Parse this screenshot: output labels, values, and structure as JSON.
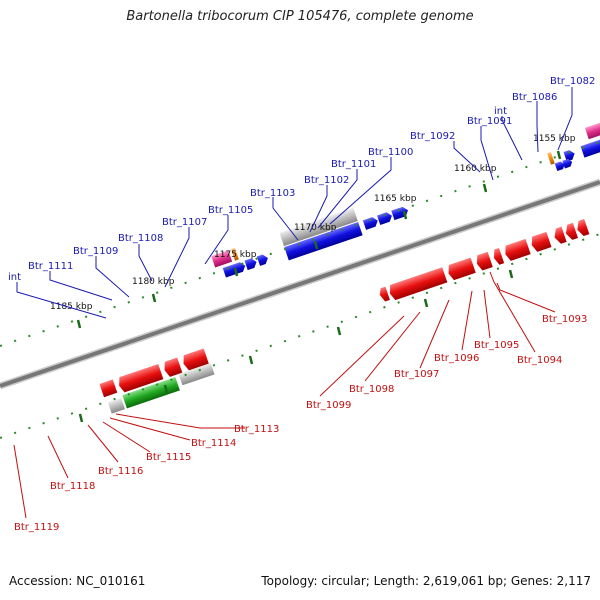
{
  "title": "Bartonella tribocorum CIP 105476, complete genome",
  "footer": {
    "accession": "Accession: NC_010161",
    "topology": "Topology: circular; Length: 2,619,061 bp; Genes: 2,117"
  },
  "scale_labels": [
    "1155 kbp",
    "1160 kbp",
    "1165 kbp",
    "1170 kbp",
    "1175 kbp",
    "1180 kbp",
    "1185 kbp"
  ],
  "forward_genes": [
    "Btr_1082",
    "Btr_1086",
    "int",
    "Btr_1091",
    "Btr_1092",
    "Btr_1100",
    "Btr_1101",
    "Btr_1102",
    "Btr_1103",
    "Btr_1105",
    "Btr_1107",
    "Btr_1108",
    "Btr_1109",
    "Btr_1111",
    "int"
  ],
  "reverse_genes": [
    "Btr_1093",
    "Btr_1094",
    "Btr_1095",
    "Btr_1096",
    "Btr_1097",
    "Btr_1098",
    "Btr_1099",
    "Btr_1113",
    "Btr_1114",
    "Btr_1115",
    "Btr_1116",
    "Btr_1118",
    "Btr_1119"
  ],
  "colors": {
    "forward_gene": "#1010e0",
    "reverse_gene": "#e81010",
    "label_forward": "#1a1ab0",
    "label_reverse": "#c01010",
    "backbone": "#777777",
    "tick": "#2a8a2a",
    "pseudo_gene": "#bbbbbb",
    "rna_gene": "#e0308a",
    "other_gene": "#f08a10",
    "green_gene": "#22aa22"
  }
}
